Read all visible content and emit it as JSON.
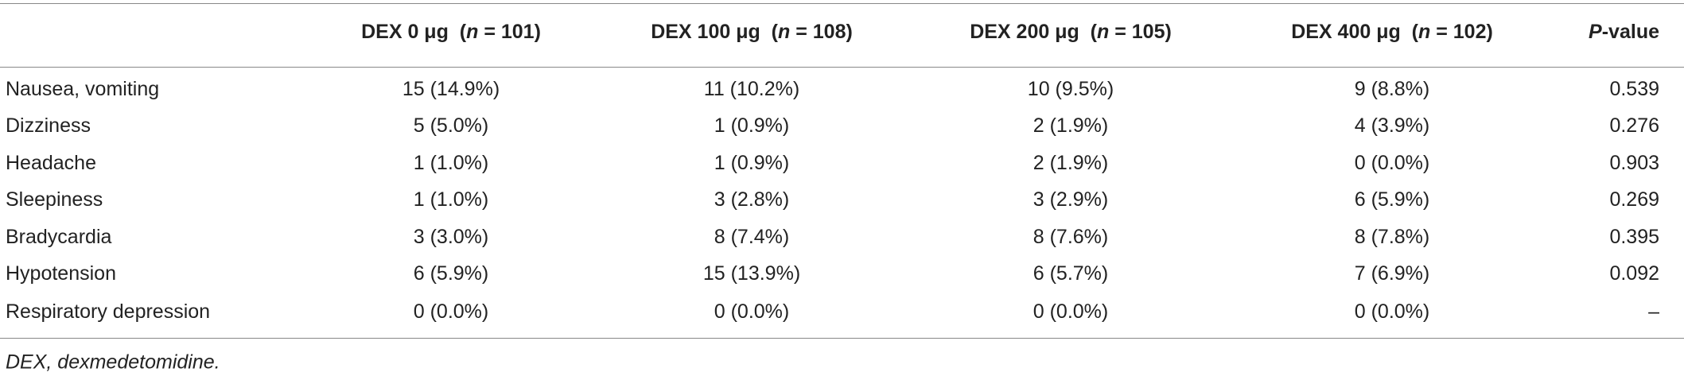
{
  "table": {
    "header": [
      [
        "DEX 0 μg  (",
        "n",
        " = 101)"
      ],
      [
        "DEX 100 μg  (",
        "n",
        " = 108)"
      ],
      [
        "DEX 200 μg  (",
        "n",
        " = 105)"
      ],
      [
        "DEX 400 μg  (",
        "n",
        " = 102)"
      ],
      [
        "P",
        "-value"
      ]
    ],
    "rows": [
      [
        "Nausea, vomiting",
        "15 (14.9%)",
        "11 (10.2%)",
        "10 (9.5%)",
        "9 (8.8%)",
        "0.539"
      ],
      [
        "Dizziness",
        "5 (5.0%)",
        "1 (0.9%)",
        "2 (1.9%)",
        "4 (3.9%)",
        "0.276"
      ],
      [
        "Headache",
        "1 (1.0%)",
        "1 (0.9%)",
        "2 (1.9%)",
        "0 (0.0%)",
        "0.903"
      ],
      [
        "Sleepiness",
        "1 (1.0%)",
        "3 (2.8%)",
        "3 (2.9%)",
        "6 (5.9%)",
        "0.269"
      ],
      [
        "Bradycardia",
        "3 (3.0%)",
        "8 (7.4%)",
        "8 (7.6%)",
        "8 (7.8%)",
        "0.395"
      ],
      [
        "Hypotension",
        "6 (5.9%)",
        "15 (13.9%)",
        "6 (5.7%)",
        "7 (6.9%)",
        "0.092"
      ],
      [
        "Respiratory depression",
        "0 (0.0%)",
        "0 (0.0%)",
        "0 (0.0%)",
        "0 (0.0%)",
        "–"
      ]
    ]
  },
  "footnote": "DEX, dexmedetomidine."
}
